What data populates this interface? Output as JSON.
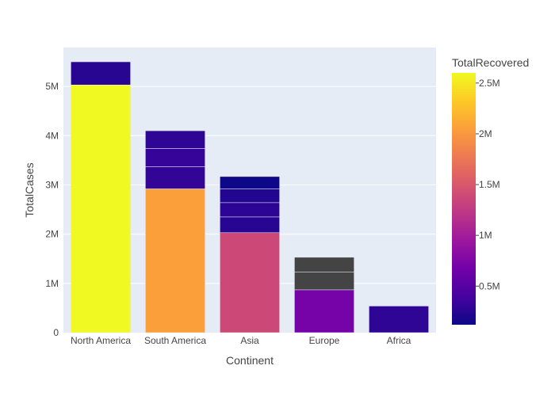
{
  "chart_data": {
    "type": "bar",
    "barmode": "stack",
    "xlabel": "Continent",
    "ylabel": "TotalCases",
    "ylim": [
      0,
      5790000
    ],
    "yticks": [
      0,
      1000000,
      2000000,
      3000000,
      4000000,
      5000000
    ],
    "ytick_labels": [
      "0",
      "1M",
      "2M",
      "3M",
      "4M",
      "5M"
    ],
    "grid": true,
    "plot_background": "#e5ecf6",
    "bar_separator_color": "#e5ecf6",
    "missing_value_color": "#444444",
    "categories": [
      "North America",
      "South America",
      "Asia",
      "Europe",
      "Africa"
    ],
    "stacks": [
      {
        "category": "North America",
        "segments": [
          {
            "value": 5030000,
            "total_recovered": 2600000
          },
          {
            "value": 470000,
            "total_recovered": 250000
          }
        ]
      },
      {
        "category": "South America",
        "segments": [
          {
            "value": 2920000,
            "total_recovered": 2050000
          },
          {
            "value": 450000,
            "total_recovered": 300000
          },
          {
            "value": 370000,
            "total_recovered": 320000
          },
          {
            "value": 360000,
            "total_recovered": 280000
          }
        ]
      },
      {
        "category": "Asia",
        "segments": [
          {
            "value": 2030000,
            "total_recovered": 1380000
          },
          {
            "value": 320000,
            "total_recovered": 250000
          },
          {
            "value": 290000,
            "total_recovered": 270000
          },
          {
            "value": 280000,
            "total_recovered": 220000
          },
          {
            "value": 250000,
            "total_recovered": 120000
          }
        ]
      },
      {
        "category": "Europe",
        "segments": [
          {
            "value": 870000,
            "total_recovered": 700000
          },
          {
            "value": 360000,
            "total_recovered": null
          },
          {
            "value": 300000,
            "total_recovered": null
          }
        ]
      },
      {
        "category": "Africa",
        "segments": [
          {
            "value": 540000,
            "total_recovered": 280000
          }
        ]
      }
    ],
    "colorbar": {
      "title": "TotalRecovered",
      "min": 120000,
      "max": 2600000,
      "ticks": [
        500000,
        1000000,
        1500000,
        2000000,
        2500000
      ],
      "tick_labels": [
        "0.5M",
        "1M",
        "1.5M",
        "2M",
        "2.5M"
      ],
      "colorscale": [
        "#0d0887",
        "#46039f",
        "#7201a8",
        "#9c179e",
        "#bd3786",
        "#d8576b",
        "#ed7953",
        "#fb9f3a",
        "#fdca26",
        "#f0f921"
      ]
    }
  }
}
